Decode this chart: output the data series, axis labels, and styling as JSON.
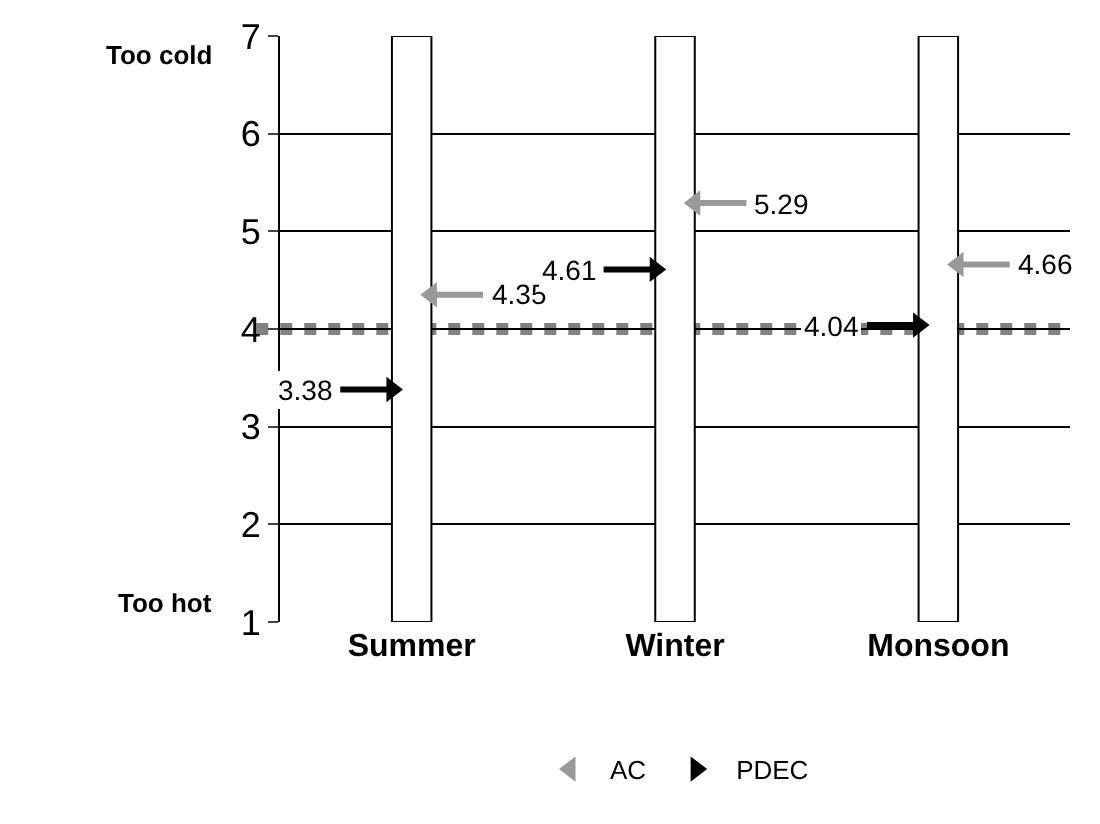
{
  "chart_data": {
    "type": "scatter",
    "categories": [
      "Summer",
      "Winter",
      "Monsoon"
    ],
    "series": [
      {
        "type": "bar",
        "color": "#ffffff",
        "base": [
          1,
          1,
          1
        ],
        "values": [
          6,
          6,
          6
        ]
      },
      {
        "name": "AC",
        "color": "#999999",
        "marker": "triangle",
        "values": [
          4.35,
          5.29,
          4.66
        ],
        "value_labels": [
          "4.35",
          "5.29",
          "4.66"
        ]
      },
      {
        "name": "PDEC",
        "color": "#000000",
        "marker": "triangle",
        "values": [
          3.38,
          4.61,
          4.04
        ],
        "value_labels": [
          "3.38",
          "4.61",
          "4.04"
        ]
      }
    ],
    "ylim": [
      1,
      7
    ],
    "yticks": [
      1,
      2,
      3,
      4,
      5,
      6,
      7
    ],
    "grid": "y",
    "legend": "bottom",
    "ref_lines": [
      {
        "axis": "y",
        "value": 4,
        "color": "#808080",
        "line_style": "dotted"
      }
    ],
    "annotations": [
      "Too cold",
      "Too hot"
    ]
  }
}
